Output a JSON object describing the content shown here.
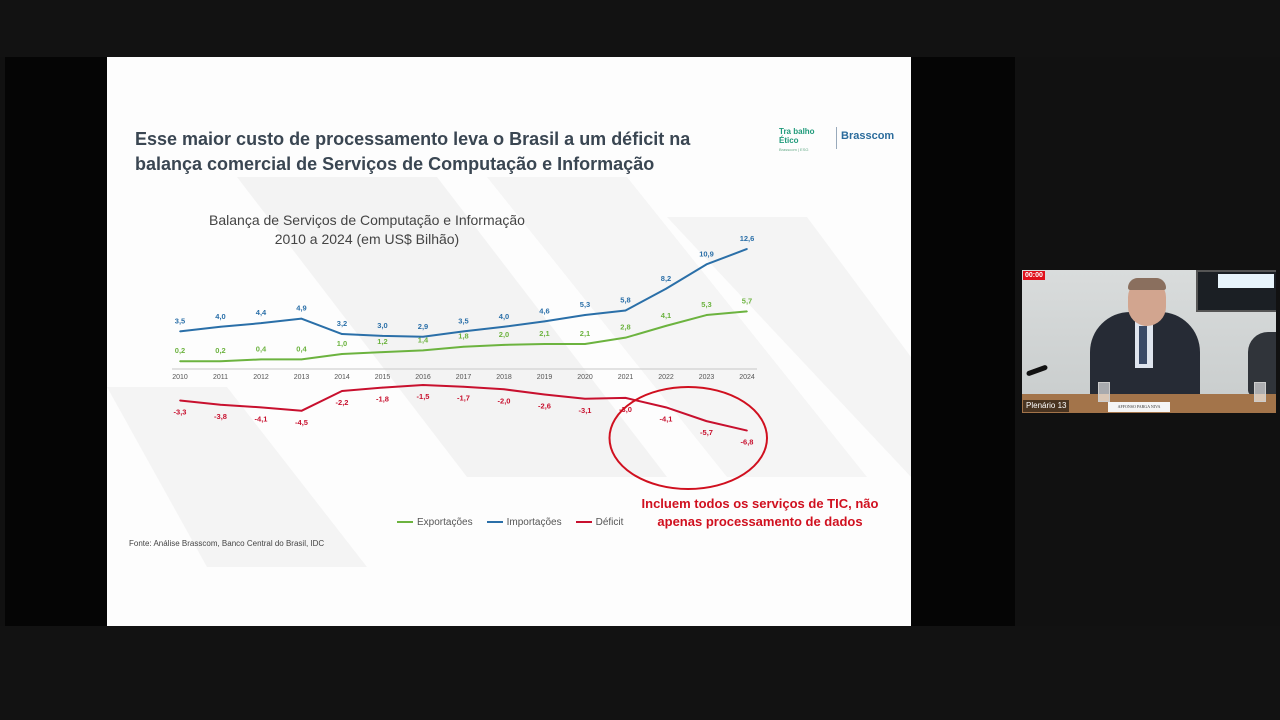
{
  "slide": {
    "title_line1": "Esse maior custo de processamento leva o Brasil a um déficit na",
    "title_line2": "balança comercial de Serviços de Computação e Informação",
    "logo_trabalho_line1": "Tra balho",
    "logo_trabalho_line2": "Ético",
    "logo_trabalho_sub": "Brasscom | ESG",
    "logo_brasscom": "Brasscom",
    "source": "Fonte: Análise Brasscom, Banco Central do Brasil, IDC",
    "annotation": "Incluem todos os serviços de TIC, não apenas processamento de dados"
  },
  "chart_data": {
    "type": "line",
    "title_line1": "Balança de Serviços de Computação e Informação",
    "title_line2": "2010 a 2024 (em US$ Bilhão)",
    "x": [
      "2010",
      "2011",
      "2012",
      "2013",
      "2014",
      "2015",
      "2016",
      "2017",
      "2018",
      "2019",
      "2020",
      "2021",
      "2022",
      "2023",
      "2024"
    ],
    "series": [
      {
        "name": "Exportações",
        "color": "#6cb33f",
        "values": [
          0.2,
          0.2,
          0.4,
          0.4,
          1.0,
          1.2,
          1.4,
          1.8,
          2.0,
          2.1,
          2.1,
          2.8,
          4.1,
          5.3,
          5.7
        ],
        "labels": [
          "0,2",
          "0,2",
          "0,4",
          "0,4",
          "1,0",
          "1,2",
          "1,4",
          "1,8",
          "2,0",
          "2,1",
          "2,1",
          "2,8",
          "4,1",
          "5,3",
          "5,7"
        ]
      },
      {
        "name": "Importações",
        "color": "#2a6fa8",
        "values": [
          3.5,
          4.0,
          4.4,
          4.9,
          3.2,
          3.0,
          2.9,
          3.5,
          4.0,
          4.6,
          5.3,
          5.8,
          8.2,
          10.9,
          12.6
        ],
        "labels": [
          "3,5",
          "4,0",
          "4,4",
          "4,9",
          "3,2",
          "3,0",
          "2,9",
          "3,5",
          "4,0",
          "4,6",
          "5,3",
          "5,8",
          "8,2",
          "10,9",
          "12,6"
        ]
      },
      {
        "name": "Déficit",
        "color": "#c8102e",
        "values": [
          -3.3,
          -3.8,
          -4.1,
          -4.5,
          -2.2,
          -1.8,
          -1.5,
          -1.7,
          -2.0,
          -2.6,
          -3.1,
          -3.0,
          -4.1,
          -5.7,
          -6.8
        ],
        "labels": [
          "-3,3",
          "-3,8",
          "-4,1",
          "-4,5",
          "-2,2",
          "-1,8",
          "-1,5",
          "-1,7",
          "-2,0",
          "-2,6",
          "-3,1",
          "-3,0",
          "-4,1",
          "-5,7",
          "-6,8"
        ]
      }
    ],
    "highlight_circle_years": [
      "2021",
      "2024"
    ],
    "legend_position": "bottom",
    "grid": false
  },
  "webcam": {
    "label": "Plenário 13",
    "rec": "00:00",
    "nameplate": "AFFONSO PARGA NIVA"
  }
}
